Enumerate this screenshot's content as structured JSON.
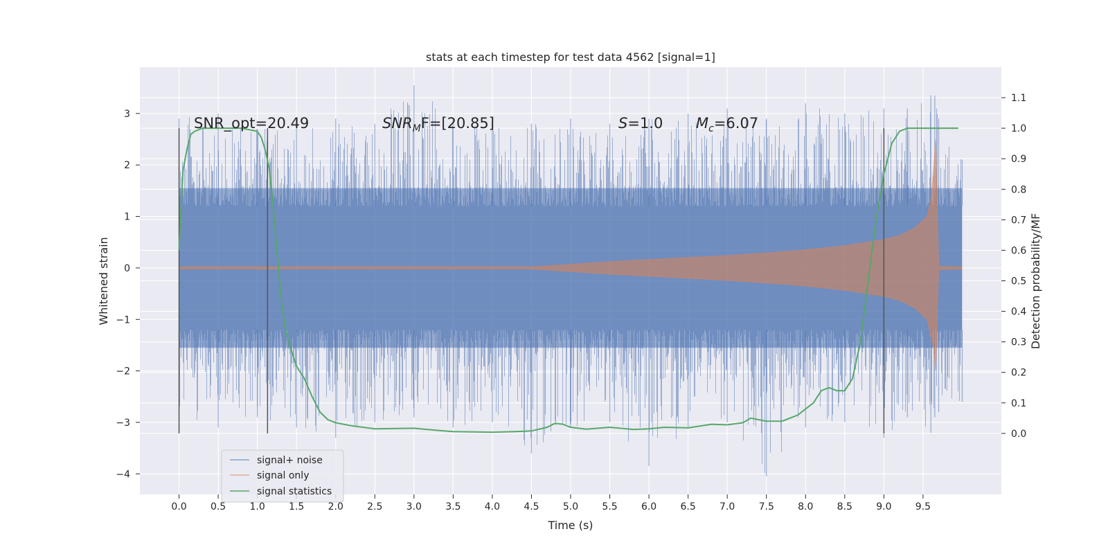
{
  "chart_data": {
    "type": "line",
    "title": "stats at each timestep for test data 4562 [signal=1]",
    "xlabel": "Time (s)",
    "ylabel_left": "Whitened strain",
    "ylabel_right": "Detection probability/MF",
    "xlim": [
      -0.5,
      10.5
    ],
    "ylim_left": [
      -4.4,
      3.9
    ],
    "ylim_right": [
      -0.2,
      1.2
    ],
    "x_ticks": [
      0.0,
      0.5,
      1.0,
      1.5,
      2.0,
      2.5,
      3.0,
      3.5,
      4.0,
      4.5,
      5.0,
      5.5,
      6.0,
      6.5,
      7.0,
      7.5,
      8.0,
      8.5,
      9.0,
      9.5
    ],
    "x_tick_labels": [
      "0.0",
      "0.5",
      "1.0",
      "1.5",
      "2.0",
      "2.5",
      "3.0",
      "3.5",
      "4.0",
      "4.5",
      "5.0",
      "5.5",
      "6.0",
      "6.5",
      "7.0",
      "7.5",
      "8.0",
      "8.5",
      "9.0",
      "9.5"
    ],
    "y_left_ticks": [
      3,
      2,
      1,
      0,
      -1,
      -2,
      -3,
      -4
    ],
    "y_left_tick_labels": [
      "3",
      "2",
      "1",
      "0",
      "−1",
      "−2",
      "−3",
      "−4"
    ],
    "y_right_ticks": [
      1.1,
      1.0,
      0.9,
      0.8,
      0.7,
      0.6,
      0.5,
      0.4,
      0.3,
      0.2,
      0.1,
      0.0
    ],
    "y_right_tick_labels": [
      "1.1",
      "1.0",
      "0.9",
      "0.8",
      "0.7",
      "0.6",
      "0.5",
      "0.4",
      "0.3",
      "0.2",
      "0.1",
      "0.0"
    ],
    "grid": true,
    "legend_position": "lower-left",
    "annotations": {
      "snr_opt": "SNR_opt=20.49",
      "snr_mf_prefix": "SNR",
      "snr_mf_sub": "M",
      "snr_mf_suffix": "F=[20.85]",
      "s_var": "S",
      "s_val": "=1.0",
      "mc_var": "M",
      "mc_sub": "c",
      "mc_val": "=6.07"
    },
    "vertical_markers": [
      0.0,
      1.13,
      9.0
    ],
    "series": [
      {
        "name": "signal+ noise",
        "color": "#4c72b0",
        "opacity": 0.5,
        "x_range": [
          0.0,
          10.0
        ],
        "envelope_x": [
          0.0,
          0.5,
          1.0,
          1.5,
          2.0,
          2.5,
          3.0,
          3.5,
          4.0,
          4.5,
          5.0,
          5.5,
          6.0,
          6.5,
          7.0,
          7.5,
          8.0,
          8.5,
          9.0,
          9.3,
          9.6,
          9.65,
          9.7,
          10.0
        ],
        "envelope_max": [
          2.9,
          3.0,
          2.7,
          2.8,
          2.9,
          2.8,
          3.55,
          2.9,
          2.8,
          2.8,
          2.9,
          2.8,
          2.9,
          3.0,
          3.1,
          2.9,
          3.2,
          3.0,
          3.1,
          3.1,
          3.35,
          3.35,
          2.9,
          2.1
        ],
        "envelope_min": [
          -3.2,
          -3.1,
          -2.9,
          -3.1,
          -3.3,
          -3.0,
          -2.9,
          -3.1,
          -3.0,
          -3.6,
          -3.1,
          -3.0,
          -3.85,
          -3.1,
          -3.0,
          -4.05,
          -3.1,
          -3.0,
          -3.3,
          -2.9,
          -3.2,
          -2.9,
          -2.8,
          -2.6
        ],
        "core_amplitude": 1.55
      },
      {
        "name": "signal only",
        "color": "#dd8452",
        "opacity": 0.5,
        "x": [
          0.0,
          1.0,
          2.0,
          3.0,
          4.0,
          4.5,
          5.0,
          5.5,
          6.0,
          6.5,
          7.0,
          7.5,
          8.0,
          8.5,
          9.0,
          9.2,
          9.4,
          9.55,
          9.6,
          9.64,
          9.66,
          9.7,
          10.0
        ],
        "amplitude": [
          0.02,
          0.02,
          0.02,
          0.02,
          0.02,
          0.02,
          0.07,
          0.12,
          0.16,
          0.2,
          0.24,
          0.29,
          0.35,
          0.43,
          0.55,
          0.63,
          0.78,
          1.0,
          1.3,
          2.0,
          2.5,
          0.03,
          0.02
        ]
      },
      {
        "name": "signal statistics",
        "color": "#55a868",
        "x": [
          0.0,
          0.05,
          0.1,
          0.15,
          0.2,
          0.3,
          0.5,
          0.8,
          1.0,
          1.05,
          1.1,
          1.15,
          1.2,
          1.25,
          1.3,
          1.35,
          1.4,
          1.45,
          1.5,
          1.6,
          1.7,
          1.8,
          1.9,
          2.0,
          2.2,
          2.5,
          3.0,
          3.3,
          3.5,
          4.0,
          4.3,
          4.5,
          4.7,
          4.8,
          4.9,
          5.0,
          5.2,
          5.5,
          5.8,
          6.0,
          6.2,
          6.5,
          6.8,
          7.0,
          7.2,
          7.3,
          7.5,
          7.7,
          7.9,
          8.0,
          8.1,
          8.2,
          8.3,
          8.4,
          8.5,
          8.6,
          8.7,
          8.8,
          8.9,
          9.0,
          9.1,
          9.2,
          9.3,
          9.4,
          9.5,
          9.6,
          9.7,
          9.8,
          9.9,
          9.95
        ],
        "y": [
          0.6,
          0.86,
          0.93,
          0.98,
          0.99,
          1.0,
          1.0,
          1.0,
          0.99,
          0.97,
          0.93,
          0.87,
          0.75,
          0.6,
          0.45,
          0.35,
          0.3,
          0.26,
          0.22,
          0.18,
          0.12,
          0.07,
          0.045,
          0.035,
          0.025,
          0.015,
          0.017,
          0.01,
          0.006,
          0.004,
          0.006,
          0.008,
          0.02,
          0.033,
          0.03,
          0.02,
          0.014,
          0.02,
          0.013,
          0.015,
          0.02,
          0.018,
          0.03,
          0.028,
          0.035,
          0.05,
          0.04,
          0.04,
          0.06,
          0.08,
          0.1,
          0.14,
          0.15,
          0.14,
          0.14,
          0.18,
          0.3,
          0.5,
          0.7,
          0.85,
          0.95,
          0.99,
          1.0,
          1.0,
          1.0,
          1.0,
          1.0,
          1.0,
          1.0,
          1.0
        ]
      }
    ]
  }
}
